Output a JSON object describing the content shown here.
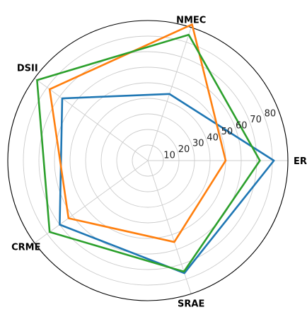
{
  "chart_data": {
    "type": "radar",
    "axes": [
      "ERC",
      "NMEC",
      "DSII",
      "CRME",
      "SRAE"
    ],
    "r_ticks": [
      10,
      20,
      30,
      40,
      50,
      60,
      70,
      80
    ],
    "r_tick_labels": [
      "10",
      "20",
      "30",
      "40",
      "50",
      "60",
      "70",
      "80"
    ],
    "r_max": 90,
    "grid": true,
    "series": [
      {
        "values": [
          81,
          45,
          68,
          70,
          76
        ],
        "color": "#1f77b4"
      },
      {
        "values": [
          50,
          92,
          78,
          63,
          55
        ],
        "color": "#ff7f0e"
      },
      {
        "values": [
          72,
          85,
          88,
          78,
          75
        ],
        "color": "#2ca02c"
      }
    ]
  }
}
